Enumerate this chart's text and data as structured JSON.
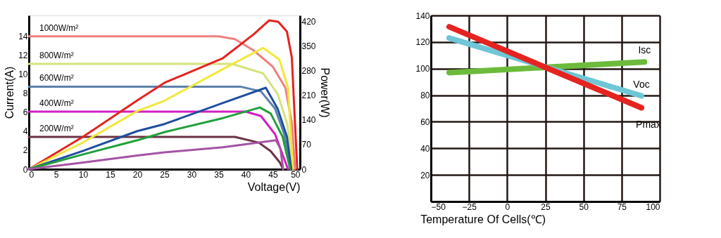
{
  "chart_data": [
    {
      "type": "line",
      "xlabel": "Voltage(V)",
      "ylabel": "Current(A)",
      "y2label": "Power(W)",
      "xlim": [
        0,
        50
      ],
      "xticks": [
        0,
        5,
        10,
        15,
        20,
        25,
        30,
        35,
        40,
        45,
        50
      ],
      "ylim": [
        0,
        16.2
      ],
      "yticks": [
        0,
        2,
        4,
        6,
        8,
        10,
        12,
        14
      ],
      "y2lim": [
        0,
        436
      ],
      "y2ticks": [
        0,
        70,
        140,
        210,
        280,
        350,
        420
      ],
      "grid": false,
      "legend": false,
      "series": [
        {
          "name": "1000W/m²",
          "color": "#ef7f7f",
          "x": [
            0,
            35,
            38,
            41.5,
            45,
            47.3,
            48.5,
            49.1
          ],
          "values": [
            14,
            14,
            13.7,
            12.5,
            10.8,
            8.6,
            4.9,
            0
          ]
        },
        {
          "name": "800W/m²",
          "color": "#d6e27e",
          "x": [
            0,
            37.5,
            43.2,
            45.9,
            47.6,
            48.7
          ],
          "values": [
            11.1,
            11.1,
            10.1,
            7.9,
            4.9,
            0
          ]
        },
        {
          "name": "600W/m²",
          "color": "#5a80aa",
          "x": [
            0,
            39,
            42.8,
            45.4,
            47.1,
            48.2
          ],
          "values": [
            8.7,
            8.7,
            8.2,
            6.4,
            3.7,
            0
          ]
        },
        {
          "name": "400W/m²",
          "color": "#d21fc3",
          "x": [
            0,
            40,
            42.8,
            45.4,
            47.8
          ],
          "values": [
            6.07,
            6.07,
            5.6,
            3.7,
            0
          ]
        },
        {
          "name": "200W/m²",
          "color": "#6b3242",
          "x": [
            0,
            38,
            42.4,
            44.6,
            46.3,
            46.9
          ],
          "values": [
            3.4,
            3.4,
            2.8,
            1.9,
            0.7,
            0
          ]
        },
        {
          "color": "#e5231f",
          "axis": "y2",
          "x": [
            0,
            10,
            20,
            25,
            35.8,
            41.5,
            44.3,
            46,
            47.6,
            48.5,
            49.5
          ],
          "values": [
            0,
            92,
            195,
            245,
            315,
            383,
            422,
            418,
            390,
            317,
            0
          ]
        },
        {
          "color": "#f2e73a",
          "axis": "y2",
          "x": [
            0,
            10,
            20,
            25,
            35.8,
            43.2,
            46.2,
            47.8,
            48.7
          ],
          "values": [
            0,
            76,
            165,
            194,
            284,
            344,
            311,
            231,
            0
          ]
        },
        {
          "color": "#1f4e9f",
          "axis": "y2",
          "x": [
            0,
            10,
            20,
            25,
            35.8,
            43.7,
            45.9,
            47.6,
            48.4
          ],
          "values": [
            0,
            52,
            108,
            128,
            188,
            231,
            171,
            92,
            0
          ]
        },
        {
          "color": "#20a03a",
          "axis": "y2",
          "x": [
            0,
            10,
            20,
            25,
            35.8,
            42.6,
            44.6,
            46.8,
            48.2
          ],
          "values": [
            0,
            42,
            82,
            105,
            145,
            175,
            158,
            92,
            0
          ]
        },
        {
          "color": "#a453a4",
          "axis": "y2",
          "x": [
            0,
            10,
            20,
            25,
            35.8,
            45.6,
            46.4,
            46.9
          ],
          "values": [
            0,
            19,
            39,
            48,
            62,
            82,
            58,
            0
          ]
        }
      ]
    },
    {
      "type": "line",
      "xlabel": "Temperature Of Cells(℃)",
      "xlim": [
        -50,
        100
      ],
      "xticks": [
        -50,
        -25,
        0,
        25,
        50,
        75,
        100
      ],
      "ylim": [
        0,
        140
      ],
      "yticks": [
        20,
        40,
        60,
        80,
        100,
        120,
        140
      ],
      "grid": true,
      "legend": false,
      "series": [
        {
          "name": "Isc",
          "color": "#6cbb3c",
          "x": [
            -38,
            90
          ],
          "values": [
            97,
            105
          ]
        },
        {
          "name": "Voc",
          "color": "#6ec6d6",
          "x": [
            -38,
            88
          ],
          "values": [
            123,
            79.5
          ]
        },
        {
          "name": "Pmax",
          "color": "#e5231f",
          "x": [
            -38,
            88
          ],
          "values": [
            131.5,
            70.5
          ]
        }
      ]
    }
  ]
}
